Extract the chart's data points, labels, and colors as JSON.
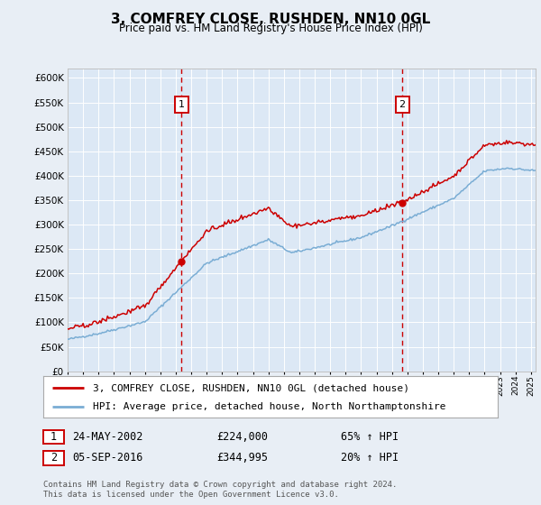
{
  "title": "3, COMFREY CLOSE, RUSHDEN, NN10 0GL",
  "subtitle": "Price paid vs. HM Land Registry's House Price Index (HPI)",
  "bg_color": "#e8eef5",
  "plot_bg_color": "#dce8f5",
  "grid_color": "#ffffff",
  "red_color": "#cc0000",
  "blue_color": "#7aadd4",
  "dashed_color": "#cc0000",
  "sale1_price": 224000,
  "sale2_price": 344995,
  "sale1_x": 2002.37,
  "sale2_x": 2016.67,
  "ylim": [
    0,
    620000
  ],
  "yticks": [
    0,
    50000,
    100000,
    150000,
    200000,
    250000,
    300000,
    350000,
    400000,
    450000,
    500000,
    550000,
    600000
  ],
  "legend_line1": "3, COMFREY CLOSE, RUSHDEN, NN10 0GL (detached house)",
  "legend_line2": "HPI: Average price, detached house, North Northamptonshire",
  "annotation1_date": "24-MAY-2002",
  "annotation1_price": "£224,000",
  "annotation1_hpi": "65% ↑ HPI",
  "annotation2_date": "05-SEP-2016",
  "annotation2_price": "£344,995",
  "annotation2_hpi": "20% ↑ HPI",
  "footer": "Contains HM Land Registry data © Crown copyright and database right 2024.\nThis data is licensed under the Open Government Licence v3.0."
}
